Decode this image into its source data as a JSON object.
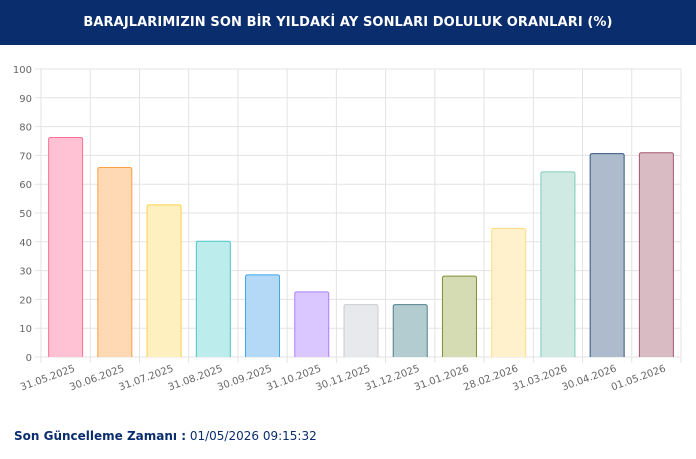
{
  "header": {
    "title": "BARAJLARIMIZIN SON BİR YILDAKİ AY SONLARI DOLULUK ORANLARI (%)"
  },
  "footer": {
    "label": "Son Güncelleme Zamanı :",
    "value": "01/05/2026 09:15:32"
  },
  "chart_data": {
    "type": "bar",
    "title": "",
    "xlabel": "",
    "ylabel": "",
    "ylim": [
      0,
      100
    ],
    "yticks": [
      0,
      10,
      20,
      30,
      40,
      50,
      60,
      70,
      80,
      90,
      100
    ],
    "grid": true,
    "categories": [
      "31.05.2025",
      "30.06.2025",
      "31.07.2025",
      "31.08.2025",
      "30.09.2025",
      "31.10.2025",
      "30.11.2025",
      "31.12.2025",
      "31.01.2026",
      "28.02.2026",
      "31.03.2026",
      "30.04.2026",
      "01.05.2026"
    ],
    "values": [
      76.2,
      65.8,
      52.8,
      40.2,
      28.5,
      22.6,
      18.2,
      18.2,
      28.1,
      44.6,
      64.3,
      70.6,
      70.9
    ],
    "fills": [
      "#ffc1d3",
      "#ffd9b3",
      "#fff0bf",
      "#bdeced",
      "#b3d9f7",
      "#dbc7ff",
      "#e8e9ec",
      "#b3ccd0",
      "#d5dbb3",
      "#fff1cc",
      "#cfeae3",
      "#adbbcc",
      "#d9bbc4"
    ],
    "strokes": [
      "#ff6f97",
      "#ff9e45",
      "#ffcf4d",
      "#4bc5c6",
      "#3ea6ee",
      "#a77fff",
      "#c9cbcf",
      "#4d8089",
      "#7f8e33",
      "#ffdd87",
      "#7dccb7",
      "#34547e",
      "#a3576b"
    ]
  }
}
